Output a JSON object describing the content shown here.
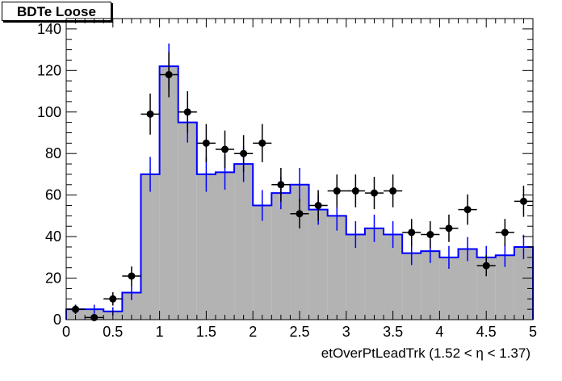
{
  "chart_data": {
    "type": "histogram",
    "title": "BDTe Loose",
    "xlabel": "etOverPtLeadTrk (1.52 <   η < 1.37)",
    "ylabel": "",
    "xlim": [
      0,
      5
    ],
    "ylim": [
      0,
      145
    ],
    "x_ticks": [
      "0",
      "0.5",
      "1",
      "1.5",
      "2",
      "2.5",
      "3",
      "3.5",
      "4",
      "4.5",
      "5"
    ],
    "y_ticks": [
      "0",
      "20",
      "40",
      "60",
      "80",
      "100",
      "120",
      "140"
    ],
    "bin_edges": [
      0,
      0.2,
      0.4,
      0.6,
      0.8,
      1.0,
      1.2,
      1.4,
      1.6,
      1.8,
      2.0,
      2.2,
      2.4,
      2.6,
      2.8,
      3.0,
      3.2,
      3.4,
      3.6,
      3.8,
      4.0,
      4.2,
      4.4,
      4.6,
      4.8,
      5.0
    ],
    "series": [
      {
        "kind": "filled-histogram",
        "color": "#b3b3b3",
        "values": [
          5,
          5,
          4,
          13,
          70,
          122,
          95,
          70,
          71,
          75,
          55,
          61,
          65,
          53,
          50,
          41,
          44,
          41,
          32,
          33,
          30,
          34,
          30,
          31,
          35
        ]
      },
      {
        "kind": "line-histogram",
        "color": "#0000ff",
        "values": [
          5,
          5,
          4,
          13,
          70,
          122,
          95,
          70,
          71,
          75,
          55,
          61,
          65,
          53,
          50,
          41,
          44,
          41,
          32,
          33,
          30,
          34,
          30,
          31,
          35
        ],
        "errors": [
          2.2,
          2.2,
          2.0,
          3.6,
          8.4,
          11.0,
          9.7,
          8.4,
          8.4,
          8.7,
          7.4,
          7.8,
          8.1,
          7.3,
          7.1,
          6.4,
          6.6,
          6.4,
          5.7,
          5.7,
          5.5,
          5.8,
          5.5,
          5.6,
          5.9
        ]
      },
      {
        "kind": "points",
        "color": "#000000",
        "x": [
          0.1,
          0.3,
          0.5,
          0.7,
          0.9,
          1.1,
          1.3,
          1.5,
          1.7,
          1.9,
          2.1,
          2.3,
          2.5,
          2.7,
          2.9,
          3.1,
          3.3,
          3.5,
          3.7,
          3.9,
          4.1,
          4.3,
          4.5,
          4.7,
          4.9
        ],
        "y": [
          5,
          1,
          10,
          21,
          99,
          118,
          100,
          85,
          82,
          80,
          85,
          65,
          51,
          55,
          62,
          62,
          61,
          62,
          42,
          41,
          44,
          53,
          26,
          42,
          57
        ],
        "errors": [
          2.2,
          1.0,
          3.2,
          4.6,
          9.9,
          10.9,
          10.0,
          9.2,
          9.1,
          8.9,
          9.2,
          8.1,
          7.1,
          7.4,
          7.9,
          7.9,
          7.8,
          7.9,
          6.5,
          6.4,
          6.6,
          7.3,
          5.1,
          6.5,
          7.5
        ]
      }
    ]
  }
}
